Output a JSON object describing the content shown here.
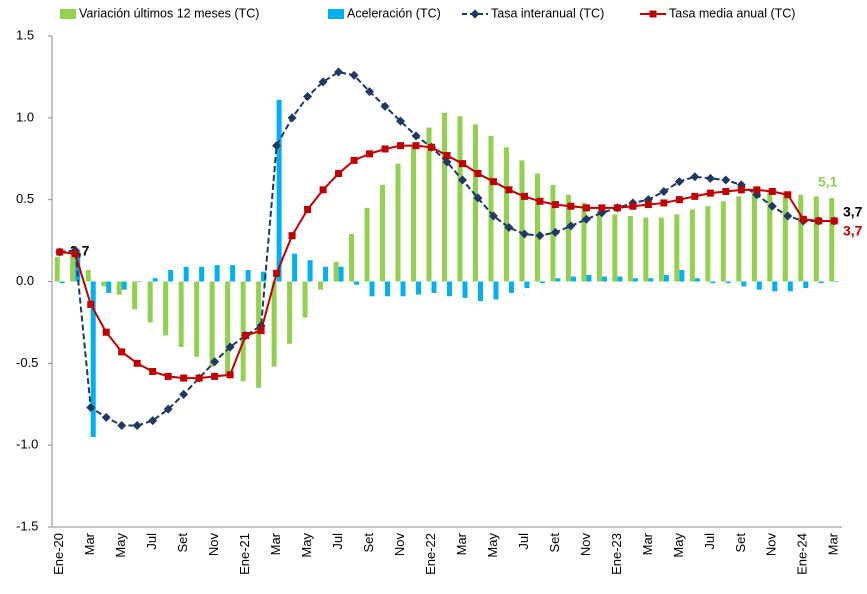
{
  "chart_data": {
    "type": "bar-line",
    "categories": [
      "Ene-20",
      null,
      "Mar",
      null,
      "May",
      null,
      "Jul",
      null,
      "Set",
      null,
      "Nov",
      null,
      "Ene-21",
      null,
      "Mar",
      null,
      "May",
      null,
      "Jul",
      null,
      "Set",
      null,
      "Nov",
      null,
      "Ene-22",
      null,
      "Mar",
      null,
      "May",
      null,
      "Jul",
      null,
      "Set",
      null,
      "Nov",
      null,
      "Ene-23",
      null,
      "Mar",
      null,
      "May",
      null,
      "Jul",
      null,
      "Set",
      null,
      "Nov",
      null,
      "Ene-24",
      null,
      "Mar"
    ],
    "series": [
      {
        "name": "Variación últimos 12 meses  (TC)",
        "type": "bar",
        "color": "#92d050",
        "values": [
          0.15,
          0.17,
          0.07,
          -0.03,
          -0.08,
          -0.17,
          -0.25,
          -0.33,
          -0.4,
          -0.46,
          -0.52,
          -0.58,
          -0.61,
          -0.65,
          -0.52,
          -0.38,
          -0.22,
          -0.05,
          0.12,
          0.29,
          0.45,
          0.59,
          0.72,
          0.83,
          0.94,
          1.03,
          1.01,
          0.96,
          0.89,
          0.82,
          0.74,
          0.66,
          0.59,
          0.53,
          0.48,
          0.43,
          0.41,
          0.4,
          0.39,
          0.39,
          0.41,
          0.44,
          0.46,
          0.49,
          0.52,
          0.54,
          0.55,
          0.55,
          0.53,
          0.52,
          0.51
        ]
      },
      {
        "name": "Aceleración  (TC)",
        "type": "bar",
        "color": "#00b0f0",
        "values": [
          -0.01,
          0.19,
          -0.95,
          -0.07,
          -0.05,
          0.0,
          0.02,
          0.07,
          0.09,
          0.09,
          0.1,
          0.1,
          0.07,
          0.06,
          1.11,
          0.17,
          0.13,
          0.09,
          0.09,
          -0.02,
          -0.09,
          -0.09,
          -0.09,
          -0.08,
          -0.07,
          -0.09,
          -0.1,
          -0.12,
          -0.11,
          -0.07,
          -0.04,
          -0.01,
          0.02,
          0.03,
          0.04,
          0.03,
          0.03,
          0.02,
          0.02,
          0.04,
          0.07,
          0.02,
          -0.01,
          -0.01,
          -0.03,
          -0.05,
          -0.06,
          -0.06,
          -0.04,
          -0.01,
          0.0
        ]
      },
      {
        "name": "Tasa interanual (TC)",
        "type": "line",
        "dash": true,
        "marker": "diamond",
        "color": "#203864",
        "values": [
          0.18,
          0.19,
          -0.77,
          -0.83,
          -0.88,
          -0.88,
          -0.85,
          -0.78,
          -0.69,
          -0.59,
          -0.49,
          -0.4,
          -0.33,
          -0.27,
          0.83,
          1.0,
          1.13,
          1.22,
          1.28,
          1.26,
          1.16,
          1.07,
          0.98,
          0.89,
          0.82,
          0.73,
          0.62,
          0.51,
          0.4,
          0.33,
          0.29,
          0.28,
          0.3,
          0.34,
          0.38,
          0.42,
          0.45,
          0.48,
          0.5,
          0.55,
          0.61,
          0.64,
          0.63,
          0.62,
          0.59,
          0.53,
          0.46,
          0.4,
          0.37,
          0.37,
          0.37
        ]
      },
      {
        "name": "Tasa media anual  (TC)",
        "type": "line",
        "dash": false,
        "marker": "square",
        "color": "#c00000",
        "values": [
          0.18,
          0.17,
          -0.14,
          -0.31,
          -0.43,
          -0.5,
          -0.55,
          -0.58,
          -0.59,
          -0.59,
          -0.58,
          -0.57,
          -0.33,
          -0.3,
          0.05,
          0.28,
          0.44,
          0.56,
          0.66,
          0.74,
          0.78,
          0.81,
          0.83,
          0.83,
          0.82,
          0.77,
          0.72,
          0.66,
          0.61,
          0.56,
          0.52,
          0.49,
          0.47,
          0.46,
          0.45,
          0.45,
          0.45,
          0.46,
          0.47,
          0.48,
          0.5,
          0.52,
          0.54,
          0.55,
          0.56,
          0.56,
          0.55,
          0.53,
          0.38,
          0.37,
          0.37
        ]
      }
    ],
    "ylim": [
      -1.5,
      1.5
    ],
    "yticks": [
      -1.5,
      {
        "value": -1,
        "label": "-1.0"
      },
      -0.5,
      {
        "value": 0,
        "label": "0.0"
      },
      0.5,
      {
        "value": 1,
        "label": "1.0"
      },
      1.5
    ],
    "grid": false,
    "legend": "top",
    "annotations": [
      {
        "text": "3,7",
        "color": "#000000"
      },
      {
        "text": "5,1",
        "color": "#92d050"
      },
      {
        "text": "3,7",
        "color": "#000000"
      },
      {
        "text": "3,7",
        "color": "#c00000"
      }
    ]
  }
}
